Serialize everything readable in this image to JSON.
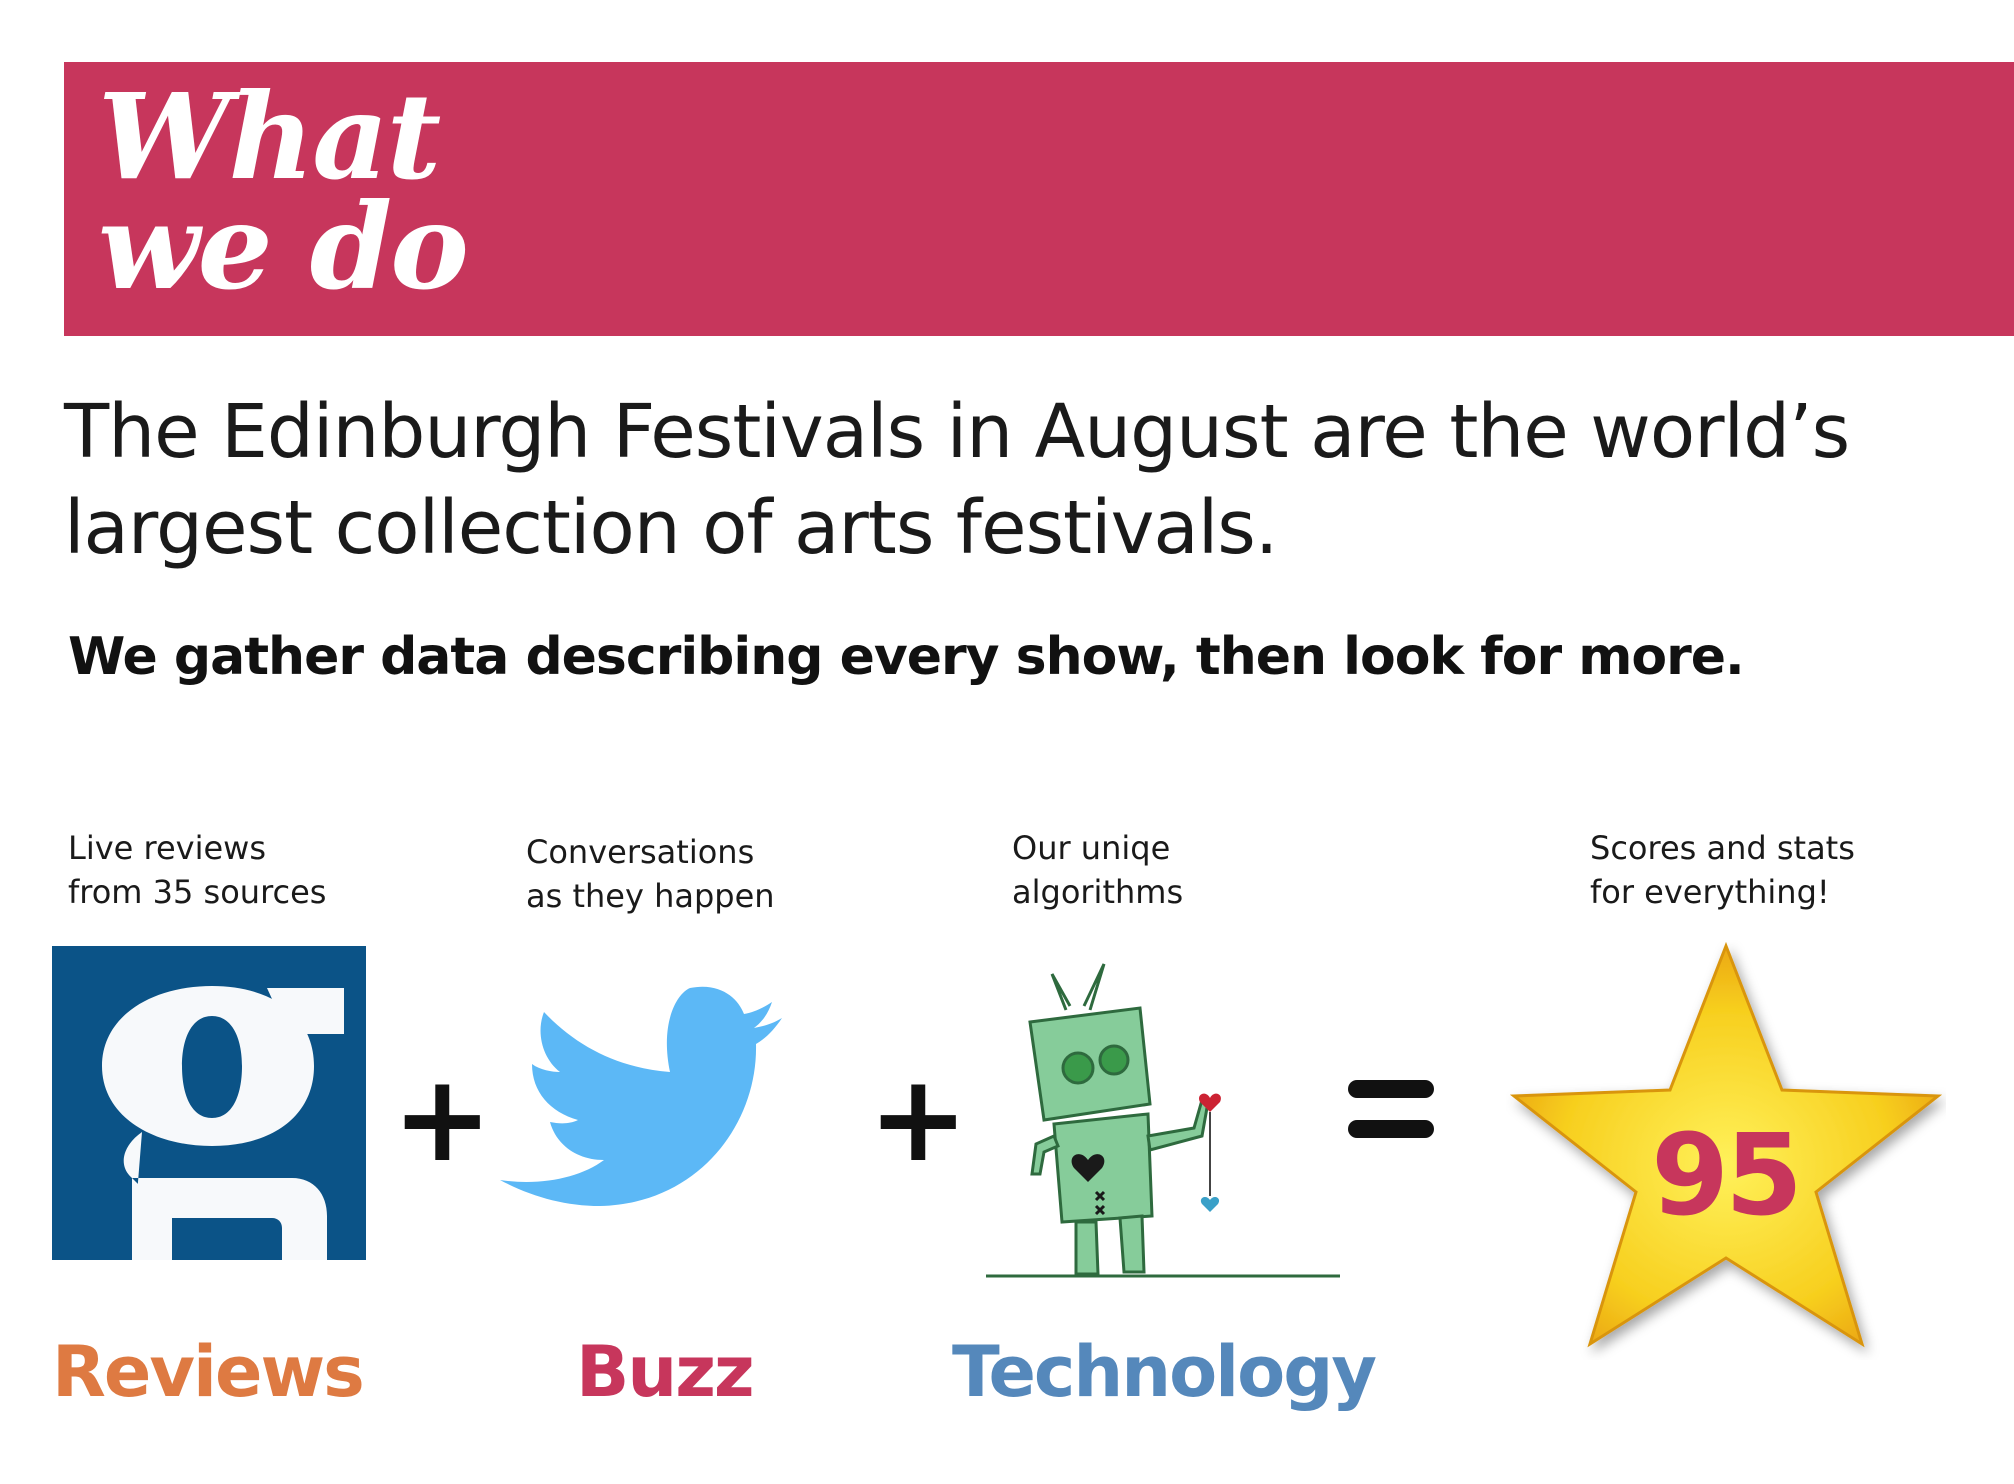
{
  "header": {
    "title_line1": "What",
    "title_line2": "we do"
  },
  "intro": "The Edinburgh Festivals in August are the world’s largest collection of arts festivals.",
  "subline": "We gather data describing every show, then look for more.",
  "steps": [
    {
      "caption_line1": "Live reviews",
      "caption_line2": "from 35 sources",
      "label": "Reviews",
      "icon": "guardian-logo-icon"
    },
    {
      "caption_line1": "Conversations",
      "caption_line2": "as they happen",
      "label": "Buzz",
      "icon": "twitter-bird-icon"
    },
    {
      "caption_line1": "Our uniqe",
      "caption_line2": "algorithms",
      "label": "Technology",
      "icon": "robot-icon"
    },
    {
      "caption_line1": "Scores and stats",
      "caption_line2": "for everything!",
      "score": "95",
      "icon": "star-icon"
    }
  ],
  "operators": {
    "plus": "+",
    "equals": "="
  },
  "colors": {
    "banner": "#c7365c",
    "reviews": "#de7a42",
    "buzz": "#c7365c",
    "technology": "#5588bb",
    "score": "#c7365c",
    "guardian_blue": "#0b5387",
    "twitter_blue": "#5cb8f6",
    "robot_green": "#86cc9a",
    "star_yellow": "#f7cf1e"
  }
}
